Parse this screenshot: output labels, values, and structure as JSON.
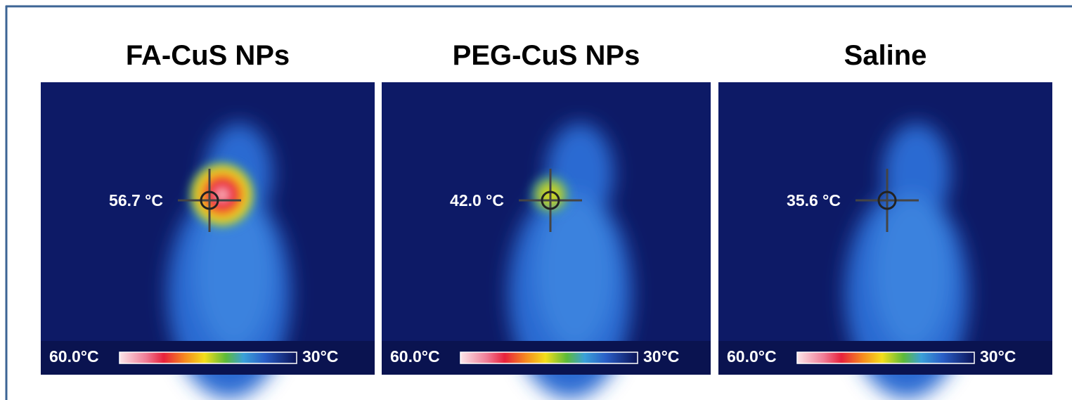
{
  "panels": [
    {
      "title": "FA-CuS NPs",
      "temperature": "56.7 °C",
      "scale_max": "60.0°C",
      "scale_min": "30°C"
    },
    {
      "title": "PEG-CuS NPs",
      "temperature": "42.0 °C",
      "scale_max": "60.0°C",
      "scale_min": "30°C"
    },
    {
      "title": "Saline",
      "temperature": "35.6 °C",
      "scale_max": "60.0°C",
      "scale_min": "30°C"
    }
  ]
}
